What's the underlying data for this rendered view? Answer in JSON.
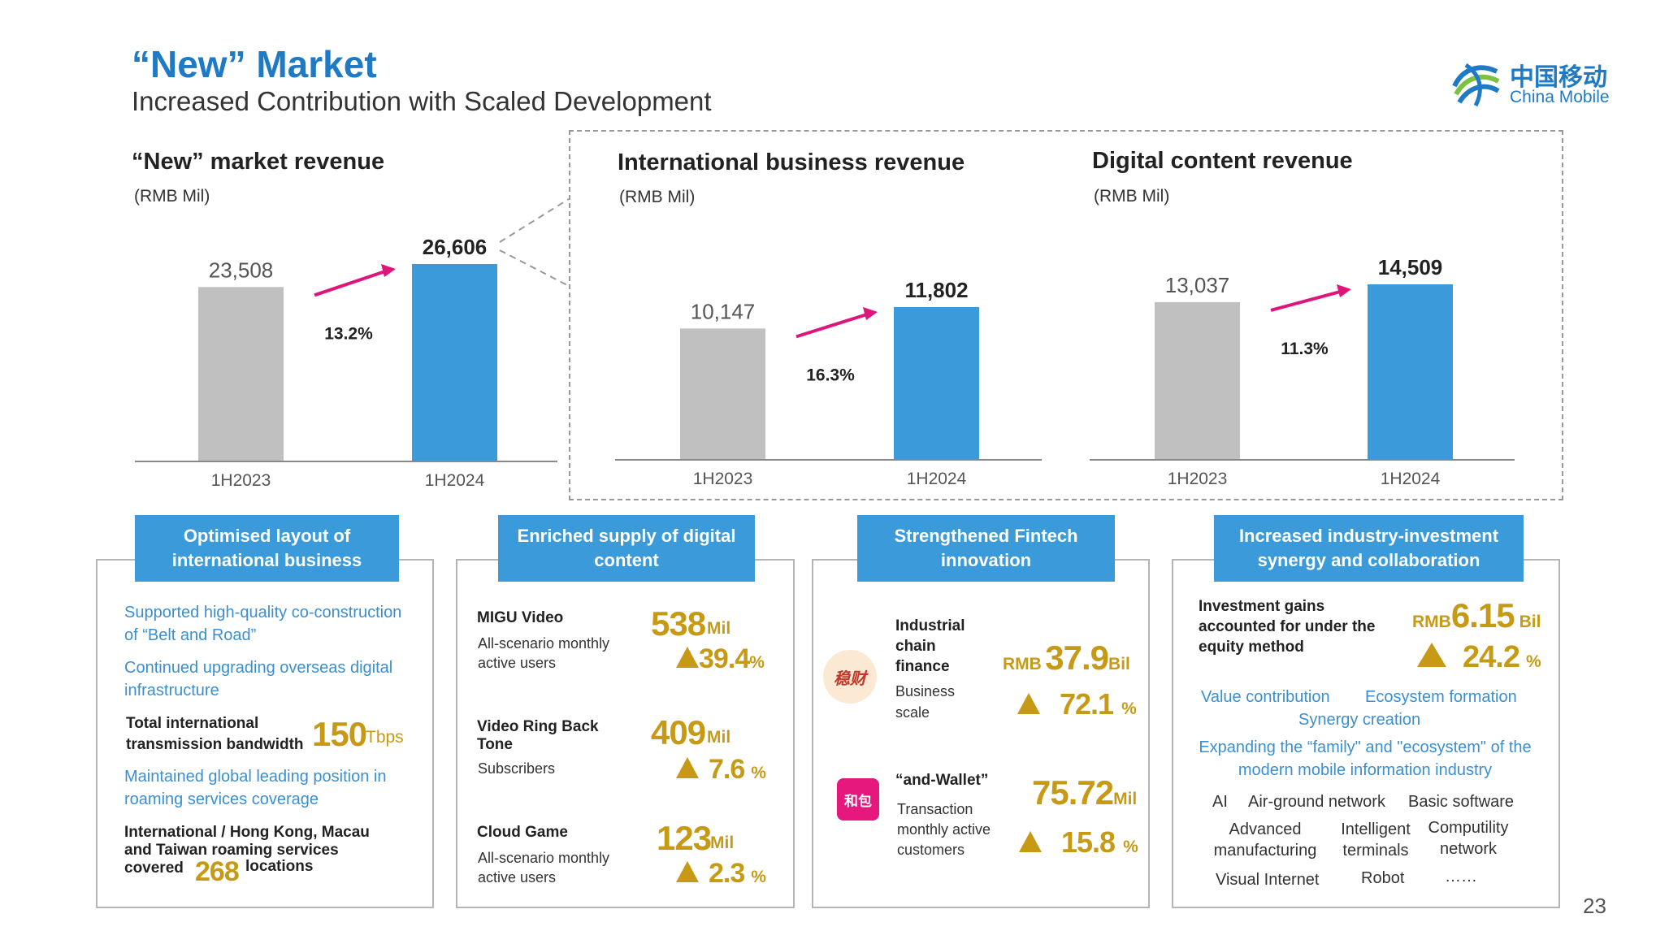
{
  "header": {
    "title": "“New” Market",
    "subtitle": "Increased Contribution with Scaled Development",
    "logo_cn": "中国移动",
    "logo_en": "China Mobile"
  },
  "colors": {
    "accent": "#3b9ad9",
    "bar_prev": "#c0c0c0",
    "bar_curr": "#3b9ad9",
    "arrow": "#e0157b",
    "gold": "#c79a16"
  },
  "chart_data": [
    {
      "type": "bar",
      "title": "“New” market revenue",
      "unit": "(RMB Mil)",
      "categories": [
        "1H2023",
        "1H2024"
      ],
      "values": [
        23508,
        26606
      ],
      "value_labels": [
        "23,508",
        "26,606"
      ],
      "growth": "13.2%"
    },
    {
      "type": "bar",
      "title": "International business revenue",
      "unit": "(RMB Mil)",
      "categories": [
        "1H2023",
        "1H2024"
      ],
      "values": [
        10147,
        11802
      ],
      "value_labels": [
        "10,147",
        "11,802"
      ],
      "growth": "16.3%"
    },
    {
      "type": "bar",
      "title": "Digital content revenue",
      "unit": "(RMB Mil)",
      "categories": [
        "1H2023",
        "1H2024"
      ],
      "values": [
        13037,
        14509
      ],
      "value_labels": [
        "13,037",
        "14,509"
      ],
      "growth": "11.3%"
    }
  ],
  "panels": {
    "intl": {
      "tab": "Optimised layout of international business",
      "line1": "Supported high-quality co-construction of “Belt and Road”",
      "line2": "Continued upgrading overseas digital infrastructure",
      "bw_label": "Total international transmission bandwidth",
      "bw_value": "150",
      "bw_unit": "Tbps",
      "line3": "Maintained global leading position in roaming services coverage",
      "roam_label": "International / Hong Kong, Macau and Taiwan roaming services covered",
      "roam_value": "268",
      "roam_unit": "locations"
    },
    "content": {
      "tab": "Enriched supply of digital content",
      "items": [
        {
          "name": "MIGU Video",
          "desc": "All-scenario monthly active users",
          "value": "538",
          "unit": "Mil",
          "growth": "39.4",
          "pct": "%"
        },
        {
          "name": "Video Ring Back Tone",
          "desc": "Subscribers",
          "value": "409",
          "unit": "Mil",
          "growth": "7.6",
          "pct": "%"
        },
        {
          "name": "Cloud Game",
          "desc": "All-scenario monthly active users",
          "value": "123",
          "unit": "Mil",
          "growth": "2.3",
          "pct": "%"
        }
      ]
    },
    "fintech": {
      "tab": "Strengthened Fintech innovation",
      "items": [
        {
          "logo": "稳财",
          "name": "Industrial chain finance",
          "desc": "Business scale",
          "prefix": "RMB",
          "value": "37.9",
          "unit": "Bil",
          "growth": "72.1",
          "pct": "%"
        },
        {
          "logo": "和包",
          "name": "“and-Wallet”",
          "desc": "Transaction monthly active customers",
          "prefix": "",
          "value": "75.72",
          "unit": "Mil",
          "growth": "15.8",
          "pct": "%"
        }
      ]
    },
    "invest": {
      "tab": "Increased industry-investment synergy and collaboration",
      "gain_label": "Investment gains accounted for under the equity method",
      "prefix": "RMB",
      "value": "6.15",
      "unit": "Bil",
      "growth": "24.2",
      "pct": "%",
      "kw1": "Value contribution",
      "kw2": "Ecosystem formation",
      "kw3": "Synergy creation",
      "expand": "Expanding the “family\" and \"ecosystem\" of the modern mobile information industry",
      "tags": [
        "AI",
        "Air-ground network",
        "Basic software",
        "Advanced manufacturing",
        "Intelligent terminals",
        "Computility network",
        "Visual Internet",
        "Robot",
        "……"
      ]
    }
  },
  "page_number": "23"
}
